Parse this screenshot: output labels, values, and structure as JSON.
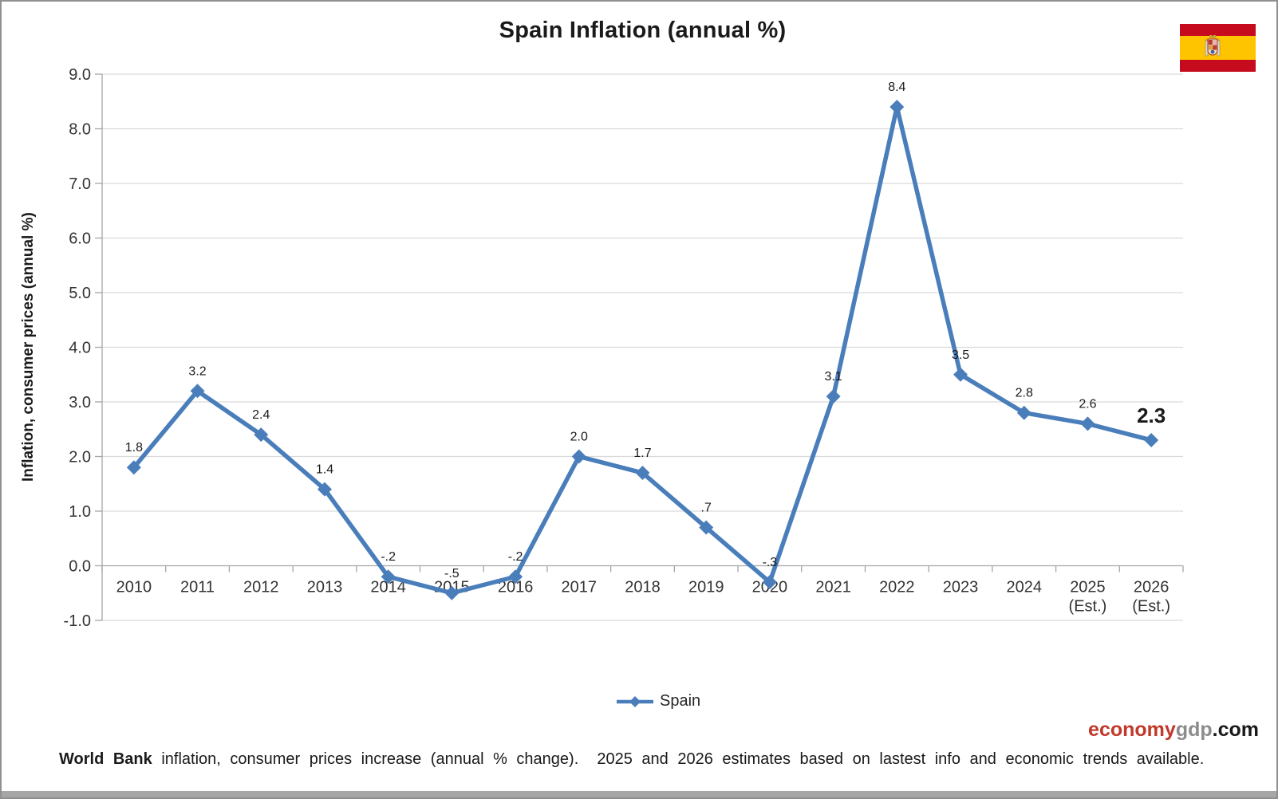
{
  "chart_data": {
    "type": "line",
    "title": "Spain Inflation (annual %)",
    "ylabel": "Inflation, consumer prices (annual %)",
    "xlabel": "",
    "categories": [
      "2010",
      "2011",
      "2012",
      "2013",
      "2014",
      "2015",
      "2016",
      "2017",
      "2018",
      "2019",
      "2020",
      "2021",
      "2022",
      "2023",
      "2024",
      "2025\n(Est.)",
      "2026\n(Est.)"
    ],
    "series": [
      {
        "name": "Spain",
        "values": [
          1.8,
          3.2,
          2.4,
          1.4,
          -0.2,
          -0.5,
          -0.2,
          2.0,
          1.7,
          0.7,
          -0.3,
          3.1,
          8.4,
          3.5,
          2.8,
          2.6,
          2.3
        ],
        "labels": [
          "1.8",
          "3.2",
          "2.4",
          "1.4",
          "-.2",
          "-.5",
          "-.2",
          "2.0",
          "1.7",
          ".7",
          "-.3",
          "3.1",
          "8.4",
          "3.5",
          "2.8",
          "2.6",
          "2.3"
        ],
        "color": "#4a7ebb"
      }
    ],
    "ylim": [
      -1,
      9
    ],
    "ytick_step": 1,
    "ytick_decimals": 1,
    "grid": true,
    "legend_position": "bottom",
    "emphasize_last_label": true,
    "colors": {
      "grid": "#d9d9d9",
      "axis": "#a6a6a6",
      "tick_label": "#333333",
      "data_label": "#1a1a1a"
    }
  },
  "flag": {
    "country": "Spain",
    "red": "#c60b1e",
    "yellow": "#ffc400"
  },
  "watermark": {
    "part1": "economy",
    "part2": "gdp",
    "part3": ".com",
    "color1": "#c0392b",
    "color2": "#8c8c8c",
    "color3": "#1a1a1a"
  },
  "footer": {
    "bold": "World Bank",
    "text": " inflation, consumer prices increase (annual % change).  2025 and 2026 estimates based on lastest info and economic trends available."
  }
}
